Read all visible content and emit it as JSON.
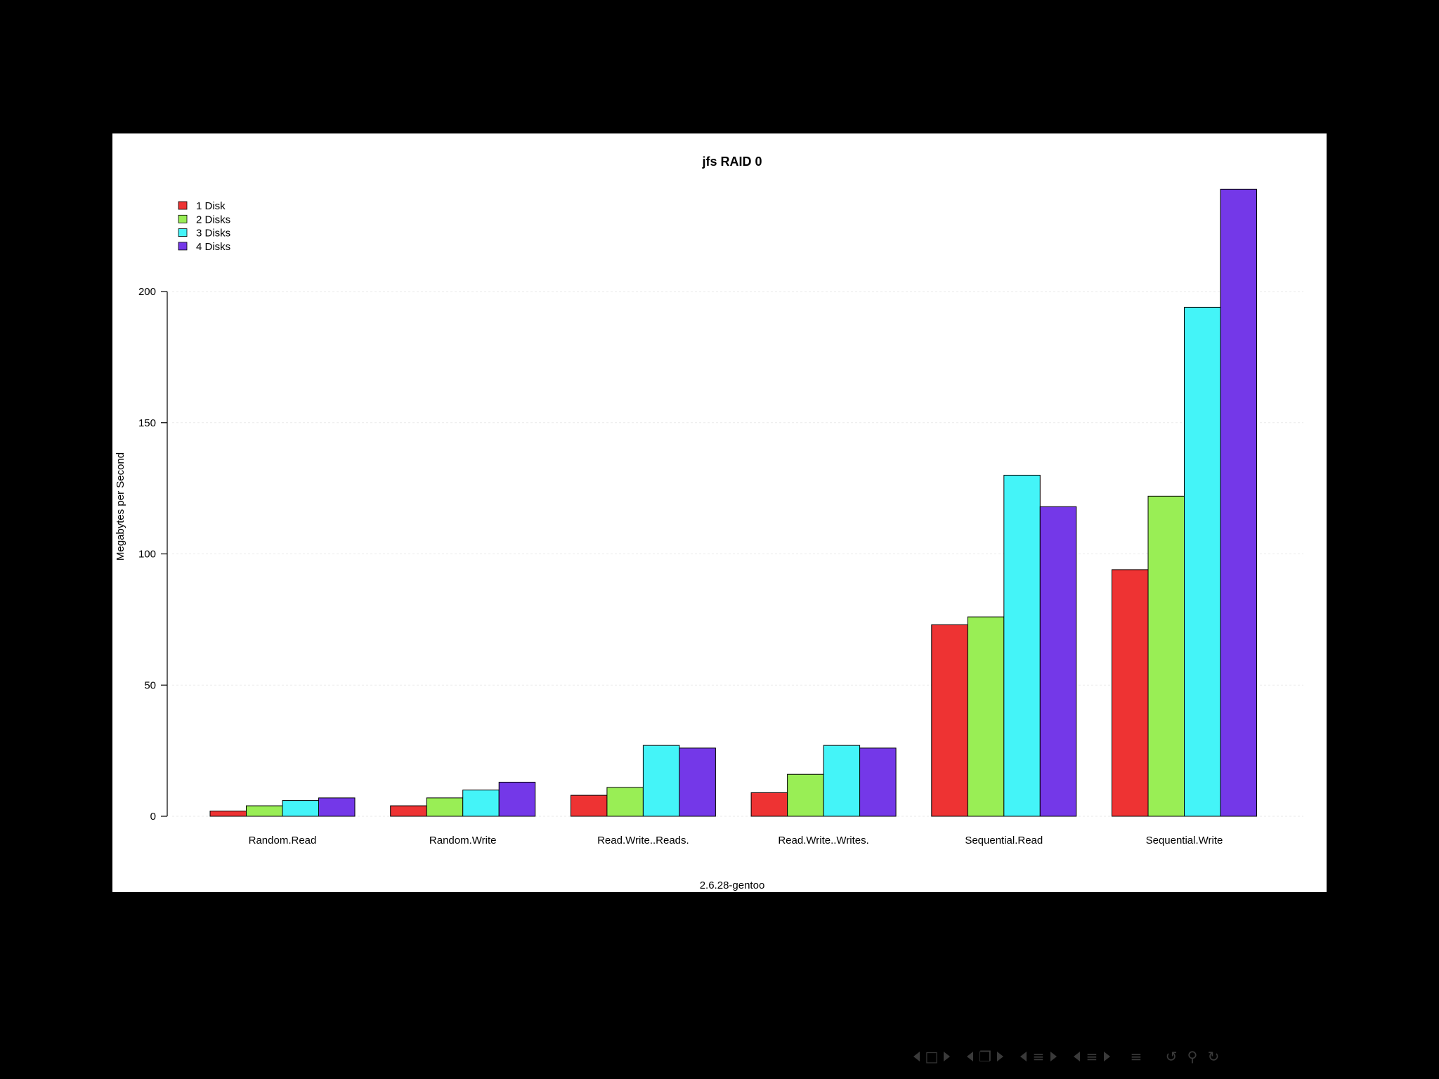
{
  "chart_data": {
    "type": "bar",
    "title": "jfs RAID 0",
    "xlabel": "2.6.28-gentoo",
    "ylabel": "Megabytes per Second",
    "categories": [
      "Random.Read",
      "Random.Write",
      "Read.Write..Reads.",
      "Read.Write..Writes.",
      "Sequential.Read",
      "Sequential.Write"
    ],
    "series": [
      {
        "name": "1 Disk",
        "color": "#ee3333",
        "values": [
          2,
          4,
          8,
          9,
          73,
          94
        ]
      },
      {
        "name": "2 Disks",
        "color": "#99ee55",
        "values": [
          4,
          7,
          11,
          16,
          76,
          122
        ]
      },
      {
        "name": "3 Disks",
        "color": "#44f4f8",
        "values": [
          6,
          10,
          27,
          27,
          130,
          194
        ]
      },
      {
        "name": "4 Disks",
        "color": "#7438e8",
        "values": [
          7,
          13,
          26,
          26,
          118,
          239
        ]
      }
    ],
    "ylim": [
      0,
      240
    ],
    "yticks": [
      0,
      50,
      100,
      150,
      200
    ],
    "grid": true,
    "legend_position": "top-left"
  },
  "nav": {
    "icons": [
      "slide-nav-icon",
      "frame-nav-icon",
      "subsection-nav-icon",
      "section-nav-icon",
      "document-nav-icon",
      "search-icon",
      "zoom-icon",
      "undo-icon"
    ]
  }
}
